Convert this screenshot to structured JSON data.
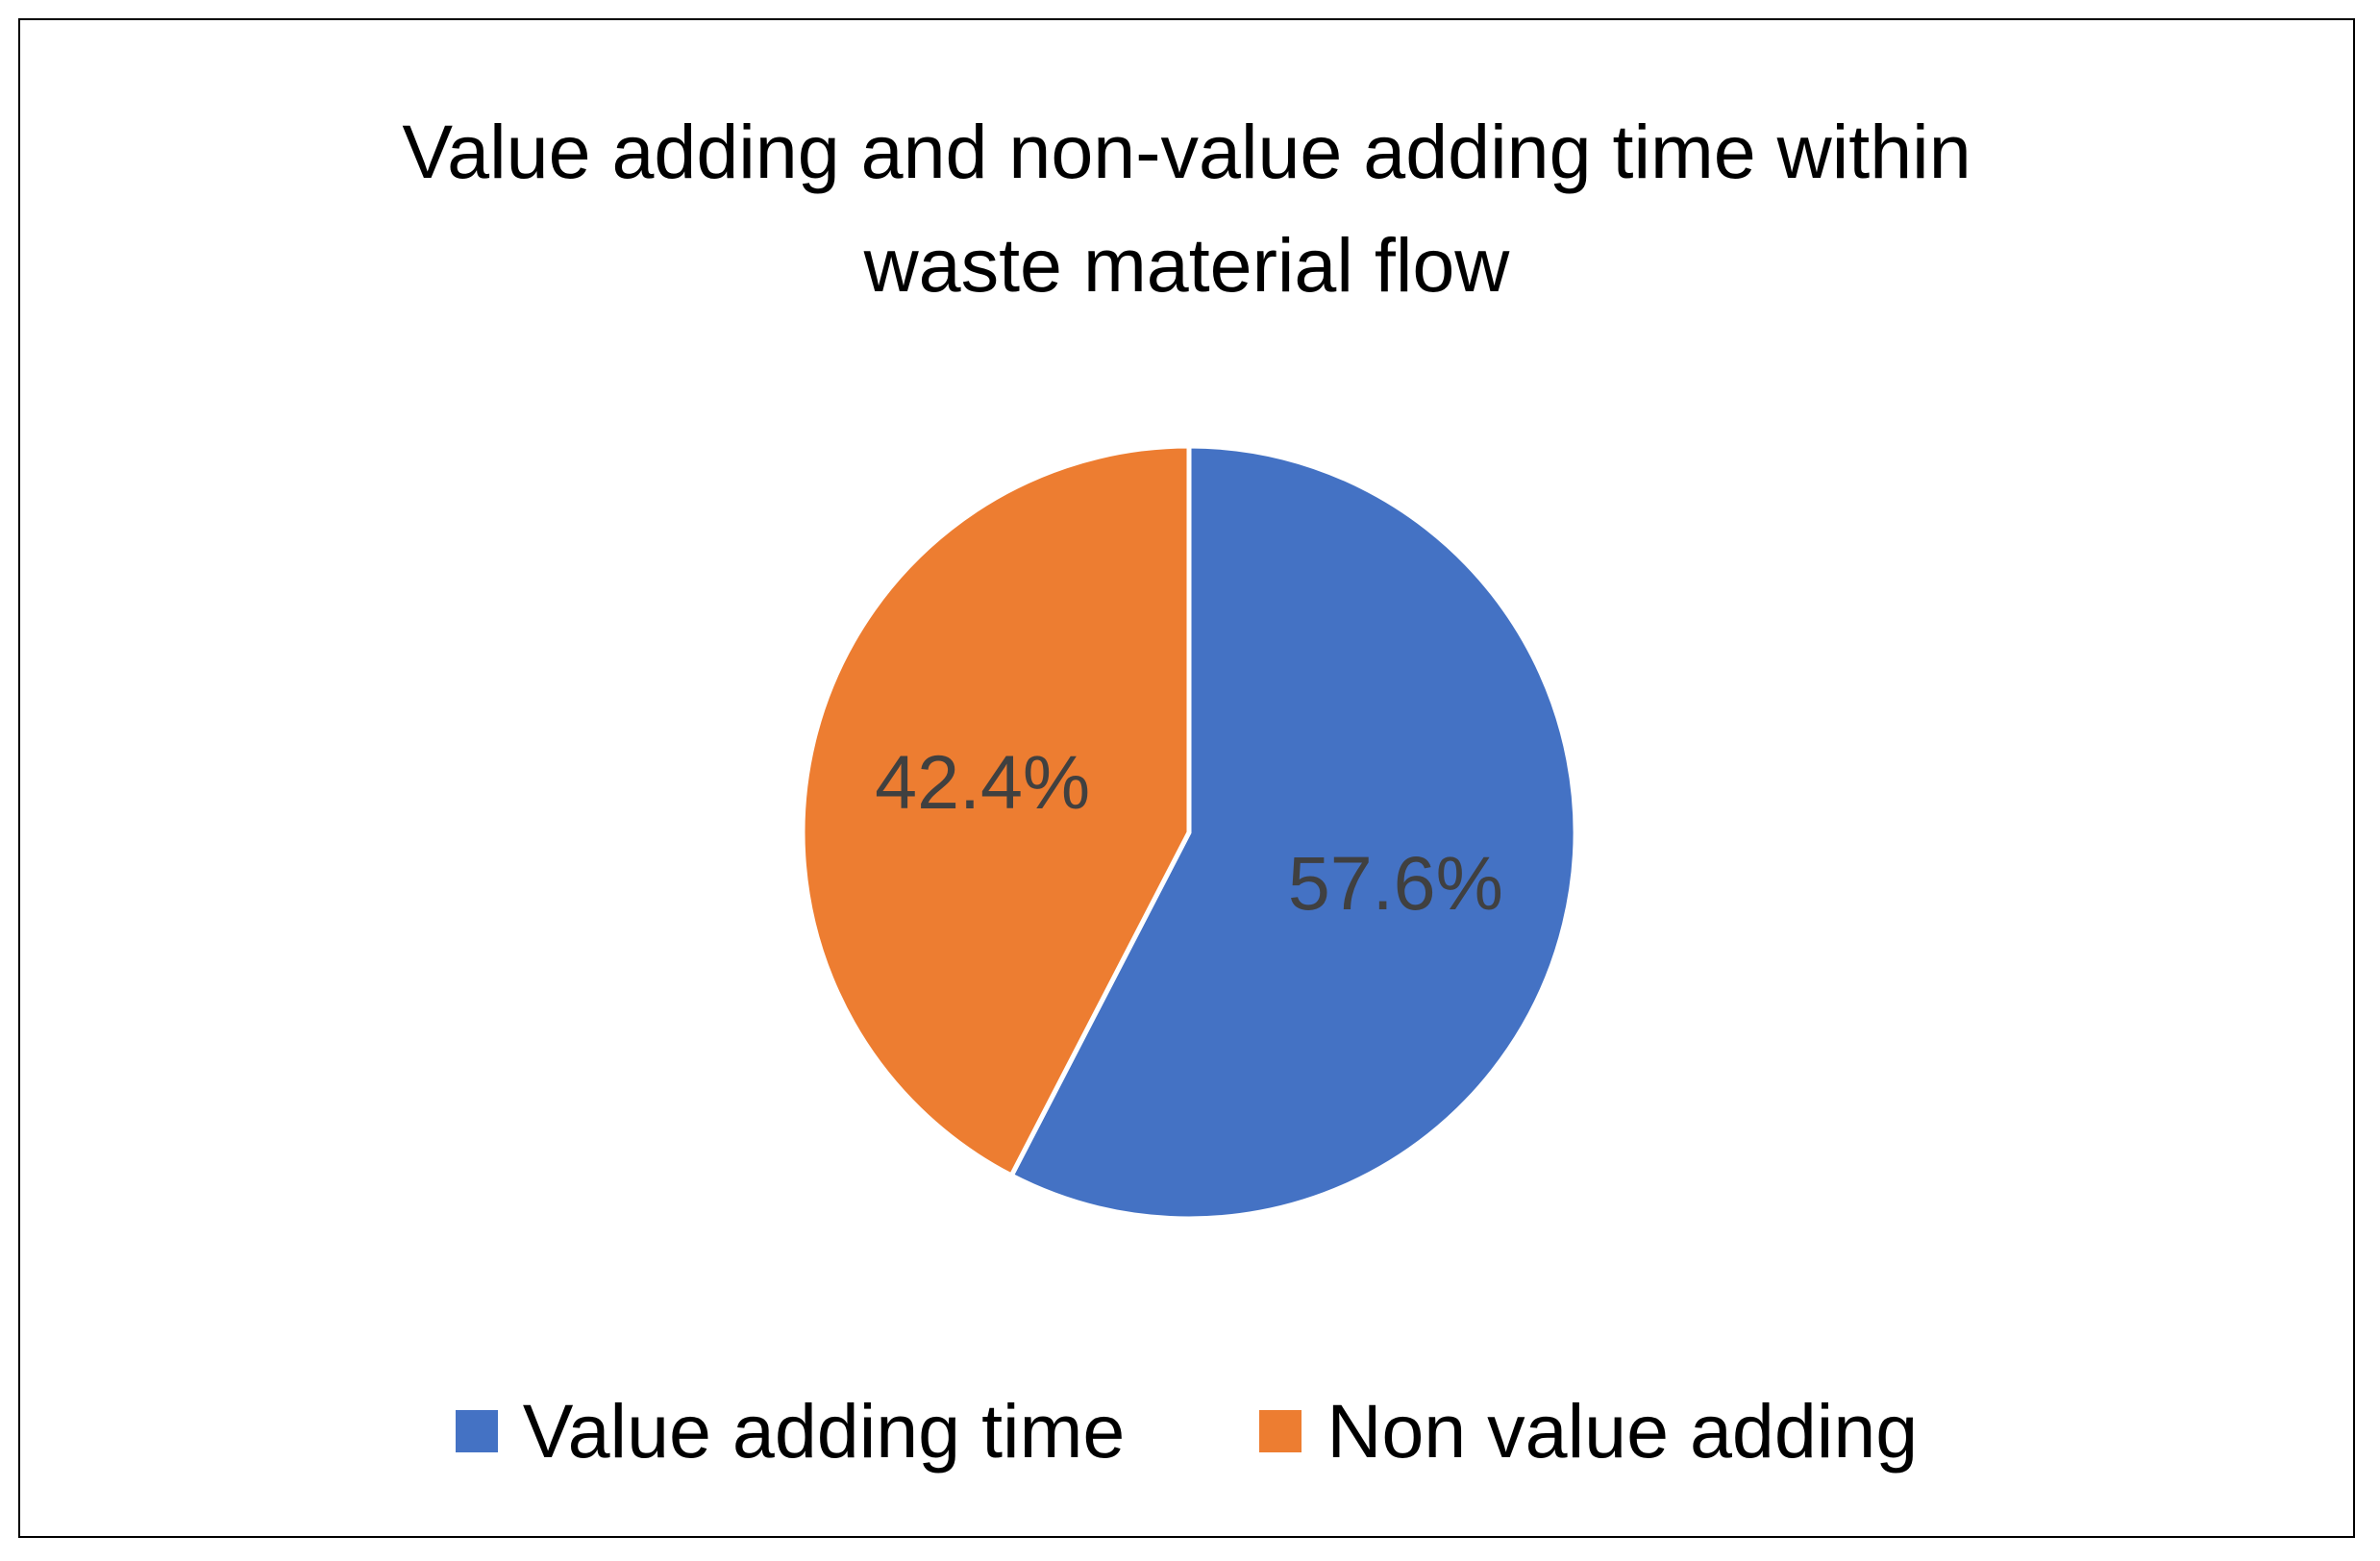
{
  "chart_data": {
    "type": "pie",
    "title_lines": [
      "Value adding and non-value adding time within",
      "waste material flow"
    ],
    "slices": [
      {
        "name": "Value adding time",
        "value": 57.6,
        "label": "57.6%",
        "color": "#4472C4"
      },
      {
        "name": "Non value adding",
        "value": 42.4,
        "label": "42.4%",
        "color": "#ED7D31"
      }
    ],
    "legend_position": "bottom",
    "start_angle": "12 o'clock",
    "direction": "clockwise"
  }
}
